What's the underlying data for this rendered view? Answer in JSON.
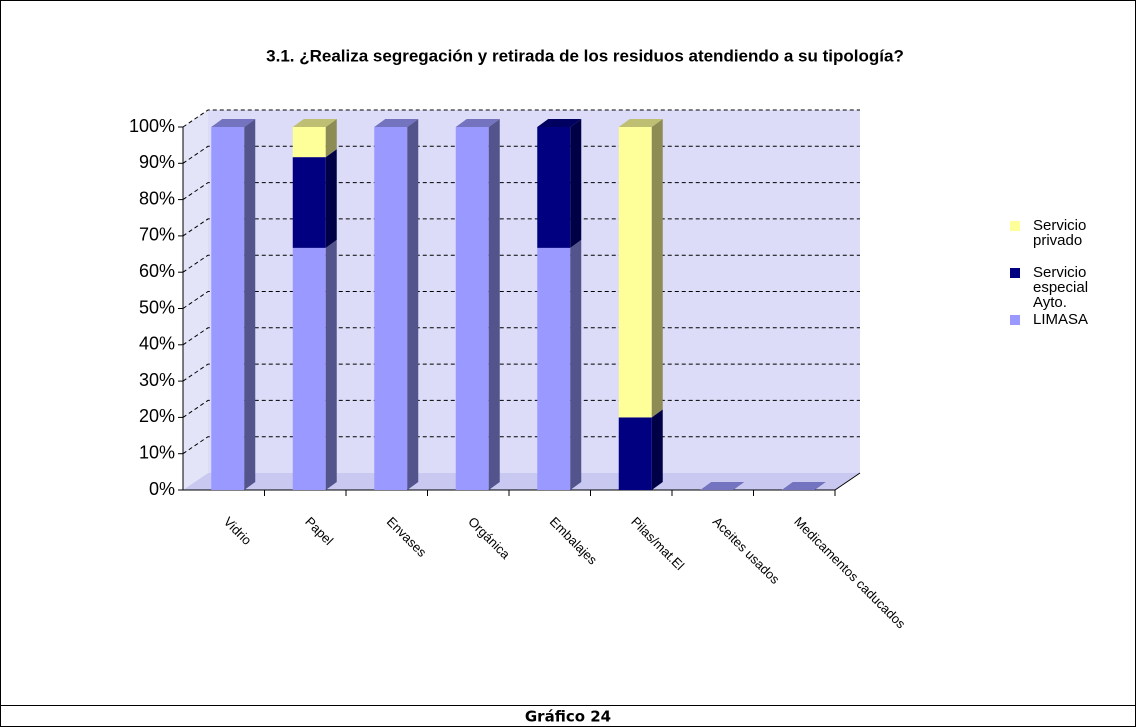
{
  "chart_data": {
    "type": "bar3d_stacked",
    "title": "3.1. ¿Realiza segregación y retirada de los residuos atendiendo a su tipología?",
    "categories": [
      "Vidrio",
      "Papel",
      "Envases",
      "Orgánica",
      "Embalajes",
      "Pilas/mat.El",
      "Aceites usados",
      "Medicamentos caducados"
    ],
    "series": [
      {
        "name": "LIMASA",
        "color": "#9999ff",
        "values": [
          100,
          66.7,
          100,
          100,
          66.7,
          0,
          0,
          0
        ]
      },
      {
        "name": "Servicio especial Ayto.",
        "color": "#000080",
        "values": [
          0,
          25,
          0,
          0,
          33.3,
          20,
          0,
          0
        ]
      },
      {
        "name": "Servicio privado",
        "color": "#ffff99",
        "values": [
          0,
          8.3,
          0,
          0,
          0,
          80,
          0,
          0
        ]
      }
    ],
    "ylim": [
      0,
      100
    ],
    "yticks": [
      {
        "value": 0,
        "label": "0%"
      },
      {
        "value": 10,
        "label": "10%"
      },
      {
        "value": 20,
        "label": "20%"
      },
      {
        "value": 30,
        "label": "30%"
      },
      {
        "value": 40,
        "label": "40%"
      },
      {
        "value": 50,
        "label": "50%"
      },
      {
        "value": 60,
        "label": "60%"
      },
      {
        "value": 70,
        "label": "70%"
      },
      {
        "value": 80,
        "label": "80%"
      },
      {
        "value": 90,
        "label": "90%"
      },
      {
        "value": 100,
        "label": "100%"
      }
    ],
    "grid": true
  },
  "caption": "Gráfico 24"
}
